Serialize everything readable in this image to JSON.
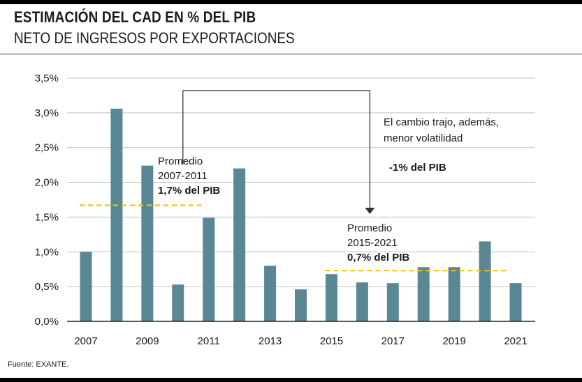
{
  "header": {
    "title": "ESTIMACIÓN DEL CAD EN % DEL PIB",
    "subtitle": "NETO DE INGRESOS POR EXPORTACIONES"
  },
  "footer": {
    "source": "Fuente: EXANTE."
  },
  "colors": {
    "bar": "#5a8794",
    "average_line": "#f5c400",
    "grid": "#bfbfbf"
  },
  "chart_data": {
    "type": "bar",
    "title": "ESTIMACIÓN DEL CAD EN % DEL PIB",
    "subtitle": "NETO DE INGRESOS POR EXPORTACIONES",
    "categories": [
      "2007",
      "2008",
      "2009",
      "2010",
      "2011",
      "2012",
      "2013",
      "2014",
      "2015",
      "2016",
      "2017",
      "2018",
      "2019",
      "2020",
      "2021"
    ],
    "values": [
      1.0,
      3.06,
      2.24,
      0.53,
      1.49,
      2.2,
      0.8,
      0.46,
      0.68,
      0.56,
      0.55,
      0.78,
      0.78,
      1.15,
      0.55
    ],
    "ylim": [
      0,
      3.5
    ],
    "y_ticks": [
      0,
      0.5,
      1.0,
      1.5,
      2.0,
      2.5,
      3.0,
      3.5
    ],
    "y_tick_labels": [
      "0,0%",
      "0,5%",
      "1,0%",
      "1,5%",
      "2,0%",
      "2,5%",
      "3,0%",
      "3,5%"
    ],
    "x_tick_labels": [
      "2007",
      "2009",
      "2011",
      "2013",
      "2015",
      "2017",
      "2019",
      "2021"
    ],
    "grid": true,
    "averages": [
      {
        "from": "2007",
        "to": "2011",
        "value": 1.67,
        "label_line1": "Promedio",
        "label_line2": "2007-2011",
        "label_value": "1,7% del PIB"
      },
      {
        "from": "2015",
        "to": "2021",
        "value": 0.73,
        "label_line1": "Promedio",
        "label_line2": "2015-2021",
        "label_value": "0,7% del PIB"
      }
    ],
    "annotation": {
      "line1": "El cambio trajo, además,",
      "line2": "menor volatilidad",
      "change": "-1% del PIB"
    }
  }
}
